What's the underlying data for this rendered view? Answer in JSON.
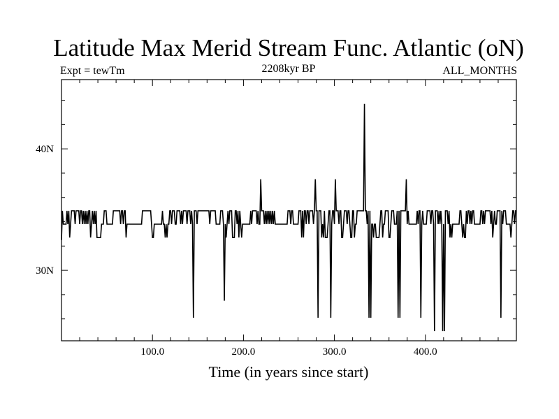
{
  "chart_data": {
    "type": "line",
    "title": "Latitude Max Merid Stream Func. Atlantic (oN)",
    "subtitle_left": "Expt = tewTm",
    "subtitle_center": "2208kyr BP",
    "subtitle_right": "ALL_MONTHS",
    "xlabel": "Time (in years since start)",
    "ylabel": "",
    "xlim": [
      0,
      500
    ],
    "ylim": [
      24.2,
      45.7
    ],
    "x_ticks": [
      {
        "value": 100,
        "label": "100.0"
      },
      {
        "value": 200,
        "label": "200.0"
      },
      {
        "value": 300,
        "label": "300.0"
      },
      {
        "value": 400,
        "label": "400.0"
      }
    ],
    "y_ticks": [
      {
        "value": 30,
        "label": "30N"
      },
      {
        "value": 40,
        "label": "40N"
      }
    ],
    "grid": false,
    "series": [
      {
        "baseline": 33.8,
        "upper_state": 34.9,
        "lower_state": 32.7,
        "spikes": [
          {
            "x": 0,
            "y": 32.5
          },
          {
            "x": 145,
            "y": 26.1
          },
          {
            "x": 179,
            "y": 27.5
          },
          {
            "x": 219,
            "y": 37.5
          },
          {
            "x": 279,
            "y": 37.5
          },
          {
            "x": 282,
            "y": 26.1
          },
          {
            "x": 296,
            "y": 26.1
          },
          {
            "x": 301,
            "y": 37.5
          },
          {
            "x": 333,
            "y": 43.7
          },
          {
            "x": 338,
            "y": 26.1
          },
          {
            "x": 340,
            "y": 26.1
          },
          {
            "x": 370,
            "y": 26.1
          },
          {
            "x": 372,
            "y": 26.1
          },
          {
            "x": 379,
            "y": 37.5
          },
          {
            "x": 395,
            "y": 26.1
          },
          {
            "x": 410,
            "y": 25.0
          },
          {
            "x": 419,
            "y": 25.0
          },
          {
            "x": 421,
            "y": 25.0
          },
          {
            "x": 483,
            "y": 26.1
          }
        ],
        "flat_ranges": [
          [
            2,
            5
          ],
          [
            50,
            56
          ],
          [
            72,
            88
          ],
          [
            102,
            110
          ],
          [
            170,
            174
          ],
          [
            200,
            207
          ],
          [
            238,
            248
          ],
          [
            255,
            260
          ],
          [
            383,
            390
          ],
          [
            430,
            436
          ],
          [
            455,
            460
          ],
          [
            489,
            493
          ]
        ]
      }
    ]
  }
}
